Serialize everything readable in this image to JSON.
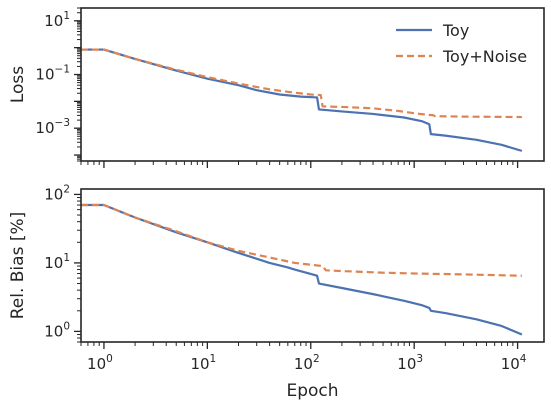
{
  "chart_data": [
    {
      "type": "line",
      "title": "",
      "xlabel": "",
      "ylabel": "Loss",
      "xscale": "log",
      "yscale": "log",
      "xlim": [
        0.6,
        18000
      ],
      "ylim": [
        6e-05,
        30
      ],
      "x_ticks": [
        {
          "value": 1,
          "base": "10",
          "exp": "0"
        },
        {
          "value": 10,
          "base": "10",
          "exp": "1"
        },
        {
          "value": 100,
          "base": "10",
          "exp": "2"
        },
        {
          "value": 1000,
          "base": "10",
          "exp": "3"
        },
        {
          "value": 10000,
          "base": "10",
          "exp": "4"
        }
      ],
      "x_tick_labels_shown": false,
      "y_ticks": [
        {
          "value": 10,
          "base": "10",
          "exp": "1"
        },
        {
          "value": 0.1,
          "base": "10",
          "exp": "−1"
        },
        {
          "value": 0.001,
          "base": "10",
          "exp": "−3"
        }
      ],
      "legend": {
        "position": "top-right",
        "entries": [
          "Toy",
          "Toy+Noise"
        ]
      },
      "grid": false,
      "series": [
        {
          "name": "Toy",
          "color": "#4c72b0",
          "style": "solid",
          "points": [
            [
              0.6,
              0.85
            ],
            [
              1,
              0.85
            ],
            [
              2,
              0.38
            ],
            [
              5,
              0.14
            ],
            [
              10,
              0.07
            ],
            [
              20,
              0.04
            ],
            [
              30,
              0.026
            ],
            [
              50,
              0.018
            ],
            [
              80,
              0.015
            ],
            [
              115,
              0.014
            ],
            [
              120,
              0.005
            ],
            [
              200,
              0.0042
            ],
            [
              400,
              0.0034
            ],
            [
              800,
              0.0025
            ],
            [
              1200,
              0.0018
            ],
            [
              1400,
              0.0014
            ],
            [
              1450,
              0.0006
            ],
            [
              2000,
              0.00053
            ],
            [
              4000,
              0.00037
            ],
            [
              7000,
              0.00024
            ],
            [
              11000,
              0.000143
            ]
          ]
        },
        {
          "name": "Toy+Noise",
          "color": "#dd8452",
          "style": "dashed",
          "points": [
            [
              0.6,
              0.85
            ],
            [
              1,
              0.85
            ],
            [
              2,
              0.38
            ],
            [
              5,
              0.15
            ],
            [
              10,
              0.08
            ],
            [
              20,
              0.046
            ],
            [
              40,
              0.028
            ],
            [
              70,
              0.021
            ],
            [
              100,
              0.018
            ],
            [
              125,
              0.017
            ],
            [
              130,
              0.0065
            ],
            [
              200,
              0.0062
            ],
            [
              400,
              0.0055
            ],
            [
              700,
              0.0044
            ],
            [
              1000,
              0.0036
            ],
            [
              1400,
              0.0031
            ],
            [
              1500,
              0.0031
            ],
            [
              1600,
              0.0028
            ],
            [
              3000,
              0.0027
            ],
            [
              11000,
              0.0026
            ]
          ]
        }
      ]
    },
    {
      "type": "line",
      "title": "",
      "xlabel": "Epoch",
      "ylabel": "Rel. Bias [%]",
      "xscale": "log",
      "yscale": "log",
      "xlim": [
        0.6,
        18000
      ],
      "ylim": [
        0.7,
        120
      ],
      "x_ticks": [
        {
          "value": 1,
          "base": "10",
          "exp": "0"
        },
        {
          "value": 10,
          "base": "10",
          "exp": "1"
        },
        {
          "value": 100,
          "base": "10",
          "exp": "2"
        },
        {
          "value": 1000,
          "base": "10",
          "exp": "3"
        },
        {
          "value": 10000,
          "base": "10",
          "exp": "4"
        }
      ],
      "x_tick_labels_shown": true,
      "y_ticks": [
        {
          "value": 100,
          "base": "10",
          "exp": "2"
        },
        {
          "value": 10,
          "base": "10",
          "exp": "1"
        },
        {
          "value": 1,
          "base": "10",
          "exp": "0"
        }
      ],
      "grid": false,
      "series": [
        {
          "name": "Toy",
          "color": "#4c72b0",
          "style": "solid",
          "points": [
            [
              0.6,
              70
            ],
            [
              1,
              70
            ],
            [
              2,
              46
            ],
            [
              5,
              28
            ],
            [
              10,
              20
            ],
            [
              20,
              14
            ],
            [
              40,
              10
            ],
            [
              60,
              8.6
            ],
            [
              70,
              8
            ],
            [
              100,
              6.9
            ],
            [
              115,
              6.5
            ],
            [
              120,
              5
            ],
            [
              200,
              4.3
            ],
            [
              400,
              3.5
            ],
            [
              800,
              2.8
            ],
            [
              1200,
              2.4
            ],
            [
              1400,
              2.2
            ],
            [
              1450,
              2
            ],
            [
              2000,
              1.85
            ],
            [
              4000,
              1.5
            ],
            [
              7000,
              1.2
            ],
            [
              11000,
              0.9
            ]
          ]
        },
        {
          "name": "Toy+Noise",
          "color": "#dd8452",
          "style": "dashed",
          "points": [
            [
              0.6,
              70
            ],
            [
              1,
              70
            ],
            [
              2,
              46
            ],
            [
              5,
              29
            ],
            [
              10,
              20
            ],
            [
              20,
              15
            ],
            [
              40,
              12
            ],
            [
              70,
              10
            ],
            [
              100,
              9.4
            ],
            [
              130,
              9
            ],
            [
              140,
              7.8
            ],
            [
              200,
              7.6
            ],
            [
              500,
              7.2
            ],
            [
              1000,
              7
            ],
            [
              3000,
              6.8
            ],
            [
              11000,
              6.5
            ]
          ]
        }
      ]
    }
  ]
}
